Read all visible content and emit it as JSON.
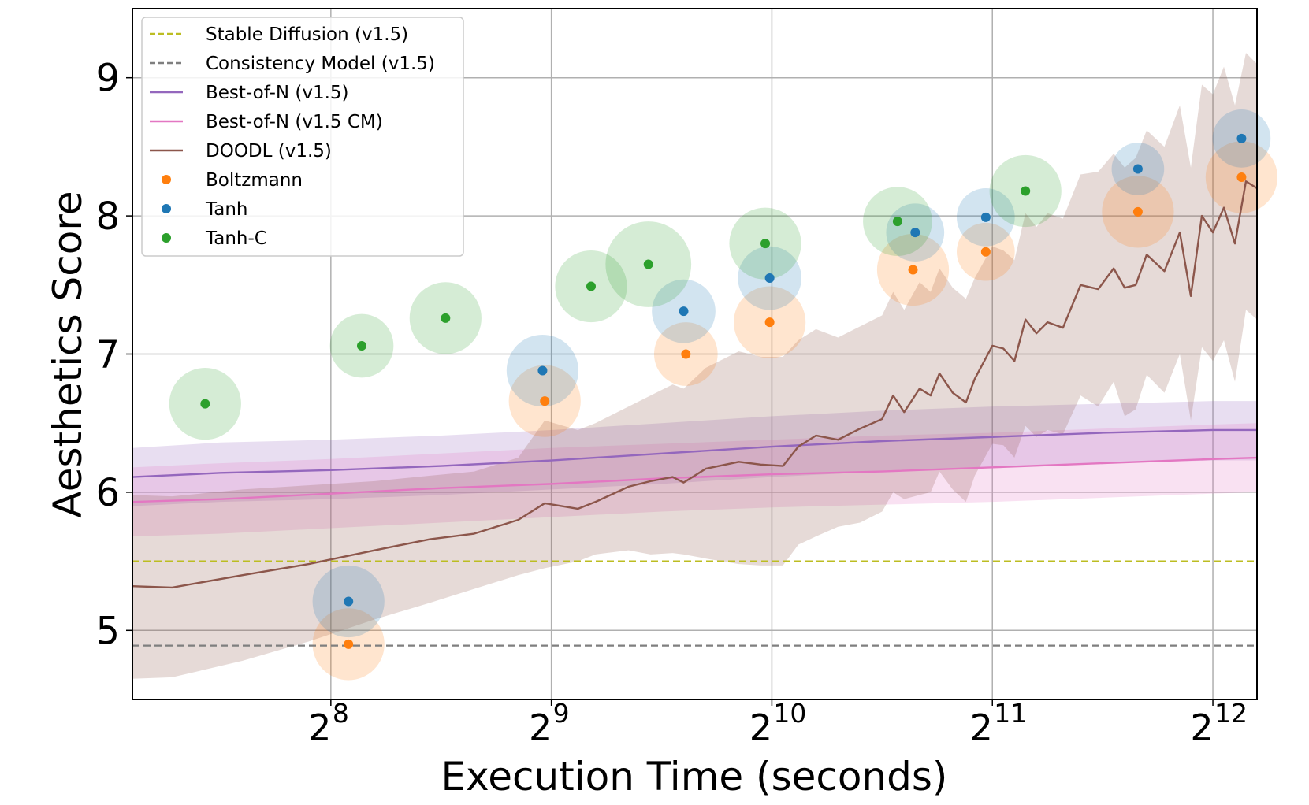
{
  "chart_data": {
    "type": "scatter",
    "title": "",
    "xlabel": "Execution Time (seconds)",
    "ylabel": "Aesthetics Score",
    "x_scale": "log2",
    "xlim_log2": [
      7.1,
      12.2
    ],
    "ylim": [
      4.5,
      9.5
    ],
    "grid": true,
    "legend_position": "upper-left",
    "x_ticks": [
      {
        "base": "2",
        "exp": "8",
        "log2": 8
      },
      {
        "base": "2",
        "exp": "9",
        "log2": 9
      },
      {
        "base": "2",
        "exp": "10",
        "log2": 10
      },
      {
        "base": "2",
        "exp": "11",
        "log2": 11
      },
      {
        "base": "2",
        "exp": "12",
        "log2": 12
      }
    ],
    "y_ticks": [
      "5",
      "6",
      "7",
      "8",
      "9"
    ],
    "y_tick_values": [
      5,
      6,
      7,
      8,
      9
    ],
    "colors": {
      "stable_diffusion": "#bcbd22",
      "consistency_model": "#7f7f7f",
      "best_of_n_v15": "#9467bd",
      "best_of_n_cm": "#e377c2",
      "doodl": "#8c564b",
      "boltzmann": "#ff7f0e",
      "tanh": "#1f77b4",
      "tanh_c": "#2ca02c"
    },
    "legend": [
      {
        "key": "stable_diffusion",
        "label": "Stable Diffusion (v1.5)",
        "style": "dashed"
      },
      {
        "key": "consistency_model",
        "label": "Consistency Model (v1.5)",
        "style": "dashed"
      },
      {
        "key": "best_of_n_v15",
        "label": "Best-of-N (v1.5)",
        "style": "line"
      },
      {
        "key": "best_of_n_cm",
        "label": "Best-of-N (v1.5 CM)",
        "style": "line"
      },
      {
        "key": "doodl",
        "label": "DOODL (v1.5)",
        "style": "line"
      },
      {
        "key": "boltzmann",
        "label": "Boltzmann",
        "style": "dot"
      },
      {
        "key": "tanh",
        "label": "Tanh",
        "style": "dot"
      },
      {
        "key": "tanh_c",
        "label": "Tanh-C",
        "style": "dot"
      }
    ],
    "hlines": [
      {
        "key": "stable_diffusion",
        "y": 5.5
      },
      {
        "key": "consistency_model",
        "y": 4.89
      }
    ],
    "line_series": [
      {
        "key": "best_of_n_v15",
        "x_log2": [
          7.1,
          7.5,
          8.0,
          8.5,
          9.0,
          9.5,
          10.0,
          10.5,
          11.0,
          11.5,
          12.0,
          12.2
        ],
        "y": [
          6.11,
          6.14,
          6.16,
          6.19,
          6.23,
          6.28,
          6.33,
          6.37,
          6.4,
          6.43,
          6.45,
          6.45
        ],
        "lower": [
          5.9,
          5.93,
          5.95,
          5.98,
          6.02,
          6.06,
          6.11,
          6.15,
          6.18,
          6.21,
          6.23,
          6.23
        ],
        "upper": [
          6.32,
          6.36,
          6.38,
          6.41,
          6.45,
          6.5,
          6.55,
          6.59,
          6.62,
          6.64,
          6.66,
          6.66
        ]
      },
      {
        "key": "best_of_n_cm",
        "x_log2": [
          7.1,
          7.5,
          8.0,
          8.5,
          9.0,
          9.5,
          10.0,
          10.5,
          11.0,
          11.5,
          12.0,
          12.2
        ],
        "y": [
          5.93,
          5.95,
          5.99,
          6.03,
          6.06,
          6.1,
          6.13,
          6.15,
          6.18,
          6.21,
          6.24,
          6.25
        ],
        "lower": [
          5.68,
          5.7,
          5.74,
          5.78,
          5.82,
          5.86,
          5.89,
          5.91,
          5.93,
          5.96,
          5.99,
          6.0
        ],
        "upper": [
          6.18,
          6.21,
          6.24,
          6.28,
          6.32,
          6.35,
          6.38,
          6.41,
          6.43,
          6.46,
          6.49,
          6.5
        ]
      },
      {
        "key": "doodl",
        "x_log2": [
          7.1,
          7.28,
          7.6,
          7.9,
          8.2,
          8.45,
          8.65,
          8.85,
          8.97,
          9.12,
          9.2,
          9.35,
          9.45,
          9.55,
          9.6,
          9.7,
          9.85,
          9.95,
          10.05,
          10.12,
          10.2,
          10.3,
          10.4,
          10.5,
          10.55,
          10.6,
          10.67,
          10.72,
          10.76,
          10.82,
          10.88,
          10.92,
          11.0,
          11.05,
          11.1,
          11.15,
          11.2,
          11.25,
          11.32,
          11.4,
          11.48,
          11.55,
          11.6,
          11.65,
          11.7,
          11.78,
          11.85,
          11.9,
          11.95,
          12.0,
          12.05,
          12.1,
          12.15,
          12.2
        ],
        "y": [
          5.32,
          5.31,
          5.4,
          5.48,
          5.58,
          5.66,
          5.7,
          5.8,
          5.92,
          5.88,
          5.93,
          6.04,
          6.08,
          6.11,
          6.07,
          6.17,
          6.22,
          6.2,
          6.19,
          6.33,
          6.41,
          6.38,
          6.46,
          6.53,
          6.7,
          6.58,
          6.75,
          6.7,
          6.86,
          6.72,
          6.65,
          6.82,
          7.06,
          7.04,
          6.95,
          7.25,
          7.15,
          7.23,
          7.19,
          7.5,
          7.47,
          7.62,
          7.48,
          7.5,
          7.72,
          7.6,
          7.88,
          7.42,
          8.0,
          7.88,
          8.06,
          7.8,
          8.25,
          8.2
        ],
        "lower": [
          4.65,
          4.66,
          4.78,
          4.92,
          5.08,
          5.2,
          5.3,
          5.4,
          5.45,
          5.5,
          5.55,
          5.58,
          5.55,
          5.56,
          5.55,
          5.52,
          5.48,
          5.47,
          5.47,
          5.62,
          5.68,
          5.75,
          5.78,
          5.86,
          6.0,
          5.95,
          5.98,
          6.0,
          6.15,
          6.02,
          5.93,
          6.12,
          6.35,
          6.34,
          6.25,
          6.48,
          6.4,
          6.45,
          6.42,
          6.7,
          6.62,
          6.8,
          6.55,
          6.6,
          6.85,
          6.72,
          7.0,
          6.52,
          7.05,
          6.95,
          7.1,
          6.8,
          7.32,
          7.25
        ],
        "upper": [
          5.98,
          5.97,
          6.02,
          6.05,
          6.08,
          6.12,
          6.15,
          6.25,
          6.52,
          6.45,
          6.5,
          6.62,
          6.7,
          6.78,
          6.75,
          6.9,
          7.02,
          6.98,
          6.98,
          7.1,
          7.18,
          7.12,
          7.2,
          7.28,
          7.45,
          7.32,
          7.52,
          7.45,
          7.62,
          7.48,
          7.4,
          7.55,
          7.78,
          7.75,
          7.68,
          8.02,
          7.92,
          8.02,
          7.98,
          8.3,
          8.32,
          8.45,
          8.35,
          8.42,
          8.62,
          8.5,
          8.8,
          8.35,
          8.95,
          8.88,
          9.08,
          8.8,
          9.18,
          9.1
        ]
      }
    ],
    "scatter_series": [
      {
        "key": "boltzmann",
        "points": [
          {
            "x_log2": 8.08,
            "y": 4.9,
            "r": 0.26
          },
          {
            "x_log2": 8.97,
            "y": 6.66,
            "r": 0.26
          },
          {
            "x_log2": 9.61,
            "y": 7.0,
            "r": 0.23
          },
          {
            "x_log2": 9.99,
            "y": 7.23,
            "r": 0.26
          },
          {
            "x_log2": 10.64,
            "y": 7.61,
            "r": 0.26
          },
          {
            "x_log2": 10.97,
            "y": 7.74,
            "r": 0.21
          },
          {
            "x_log2": 11.66,
            "y": 8.03,
            "r": 0.26
          },
          {
            "x_log2": 12.13,
            "y": 8.28,
            "r": 0.26
          }
        ]
      },
      {
        "key": "tanh",
        "points": [
          {
            "x_log2": 8.08,
            "y": 5.21,
            "r": 0.26
          },
          {
            "x_log2": 8.96,
            "y": 6.88,
            "r": 0.26
          },
          {
            "x_log2": 9.6,
            "y": 7.31,
            "r": 0.23
          },
          {
            "x_log2": 9.99,
            "y": 7.55,
            "r": 0.23
          },
          {
            "x_log2": 10.65,
            "y": 7.88,
            "r": 0.21
          },
          {
            "x_log2": 10.97,
            "y": 7.99,
            "r": 0.21
          },
          {
            "x_log2": 11.66,
            "y": 8.34,
            "r": 0.19
          },
          {
            "x_log2": 12.13,
            "y": 8.56,
            "r": 0.21
          }
        ]
      },
      {
        "key": "tanh_c",
        "points": [
          {
            "x_log2": 7.43,
            "y": 6.64,
            "r": 0.26
          },
          {
            "x_log2": 8.14,
            "y": 7.06,
            "r": 0.23
          },
          {
            "x_log2": 8.52,
            "y": 7.26,
            "r": 0.26
          },
          {
            "x_log2": 9.18,
            "y": 7.49,
            "r": 0.26
          },
          {
            "x_log2": 9.44,
            "y": 7.65,
            "r": 0.31
          },
          {
            "x_log2": 9.97,
            "y": 7.8,
            "r": 0.26
          },
          {
            "x_log2": 10.57,
            "y": 7.96,
            "r": 0.25
          },
          {
            "x_log2": 11.15,
            "y": 8.18,
            "r": 0.26
          }
        ]
      }
    ]
  }
}
